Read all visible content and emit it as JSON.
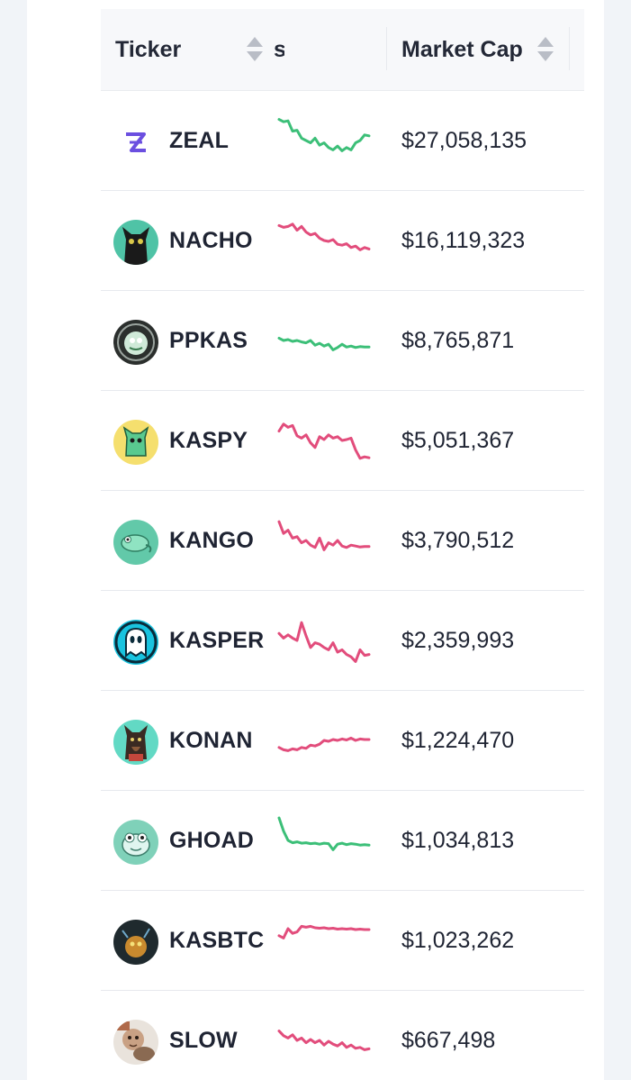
{
  "header": {
    "ticker_label": "Ticker",
    "chart_label": "s",
    "market_cap_label": "Market Cap"
  },
  "colors": {
    "up": "#3cbf78",
    "down": "#e24d7c",
    "text": "#1f2433",
    "sort_arrow": "#b9bdc6"
  },
  "rows": [
    {
      "ticker": "ZEAL",
      "market_cap": "$27,058,135",
      "trend": "up",
      "icon": "zeal-logo-icon",
      "spark": [
        0.95,
        0.9,
        0.92,
        0.7,
        0.72,
        0.55,
        0.5,
        0.45,
        0.55,
        0.4,
        0.45,
        0.35,
        0.3,
        0.38,
        0.28,
        0.35,
        0.3,
        0.45,
        0.5,
        0.62,
        0.6
      ]
    },
    {
      "ticker": "NACHO",
      "market_cap": "$16,119,323",
      "trend": "down",
      "icon": "black-cat-avatar-icon",
      "spark": [
        0.82,
        0.78,
        0.8,
        0.85,
        0.72,
        0.8,
        0.68,
        0.62,
        0.65,
        0.55,
        0.5,
        0.48,
        0.52,
        0.42,
        0.4,
        0.43,
        0.35,
        0.38,
        0.3,
        0.35,
        0.32
      ]
    },
    {
      "ticker": "PPKAS",
      "market_cap": "$8,765,871",
      "trend": "up",
      "icon": "pepe-coin-avatar-icon",
      "spark": [
        0.55,
        0.5,
        0.52,
        0.48,
        0.5,
        0.47,
        0.45,
        0.5,
        0.4,
        0.44,
        0.38,
        0.42,
        0.3,
        0.35,
        0.42,
        0.36,
        0.38,
        0.35,
        0.37,
        0.36,
        0.36
      ]
    },
    {
      "ticker": "KASPY",
      "market_cap": "$5,051,367",
      "trend": "down",
      "icon": "green-cat-avatar-icon",
      "spark": [
        0.7,
        0.85,
        0.78,
        0.82,
        0.6,
        0.55,
        0.62,
        0.45,
        0.35,
        0.58,
        0.52,
        0.62,
        0.55,
        0.58,
        0.5,
        0.52,
        0.55,
        0.3,
        0.12,
        0.15,
        0.13
      ]
    },
    {
      "ticker": "KANGO",
      "market_cap": "$3,790,512",
      "trend": "down",
      "icon": "chameleon-avatar-icon",
      "spark": [
        0.9,
        0.65,
        0.72,
        0.55,
        0.58,
        0.45,
        0.5,
        0.4,
        0.35,
        0.55,
        0.3,
        0.45,
        0.4,
        0.5,
        0.38,
        0.35,
        0.4,
        0.38,
        0.36,
        0.37,
        0.37
      ]
    },
    {
      "ticker": "KASPER",
      "market_cap": "$2,359,993",
      "trend": "down",
      "icon": "ghost-avatar-icon",
      "spark": [
        0.65,
        0.55,
        0.62,
        0.55,
        0.5,
        0.88,
        0.6,
        0.35,
        0.45,
        0.42,
        0.35,
        0.3,
        0.45,
        0.25,
        0.3,
        0.2,
        0.15,
        0.05,
        0.3,
        0.18,
        0.2
      ]
    },
    {
      "ticker": "KONAN",
      "market_cap": "$1,224,470",
      "trend": "down",
      "icon": "dog-avatar-icon",
      "spark": [
        0.35,
        0.3,
        0.28,
        0.32,
        0.3,
        0.35,
        0.33,
        0.4,
        0.38,
        0.42,
        0.5,
        0.48,
        0.52,
        0.5,
        0.53,
        0.51,
        0.55,
        0.5,
        0.53,
        0.52,
        0.52
      ]
    },
    {
      "ticker": "GHOAD",
      "market_cap": "$1,034,813",
      "trend": "up",
      "icon": "frog-avatar-icon",
      "spark": [
        0.98,
        0.7,
        0.5,
        0.45,
        0.47,
        0.44,
        0.45,
        0.43,
        0.44,
        0.42,
        0.44,
        0.43,
        0.3,
        0.42,
        0.44,
        0.41,
        0.43,
        0.42,
        0.4,
        0.41,
        0.4
      ]
    },
    {
      "ticker": "KASBTC",
      "market_cap": "$1,023,262",
      "trend": "down",
      "icon": "kasbtc-avatar-icon",
      "spark": [
        0.6,
        0.55,
        0.75,
        0.65,
        0.68,
        0.8,
        0.78,
        0.8,
        0.77,
        0.76,
        0.77,
        0.75,
        0.76,
        0.74,
        0.75,
        0.74,
        0.75,
        0.73,
        0.74,
        0.73,
        0.73
      ]
    },
    {
      "ticker": "SLOW",
      "market_cap": "$667,498",
      "trend": "down",
      "icon": "sloth-photo-avatar-icon",
      "spark": [
        0.7,
        0.6,
        0.55,
        0.62,
        0.5,
        0.55,
        0.45,
        0.52,
        0.45,
        0.5,
        0.4,
        0.48,
        0.42,
        0.38,
        0.45,
        0.35,
        0.4,
        0.33,
        0.35,
        0.3,
        0.32
      ]
    }
  ]
}
